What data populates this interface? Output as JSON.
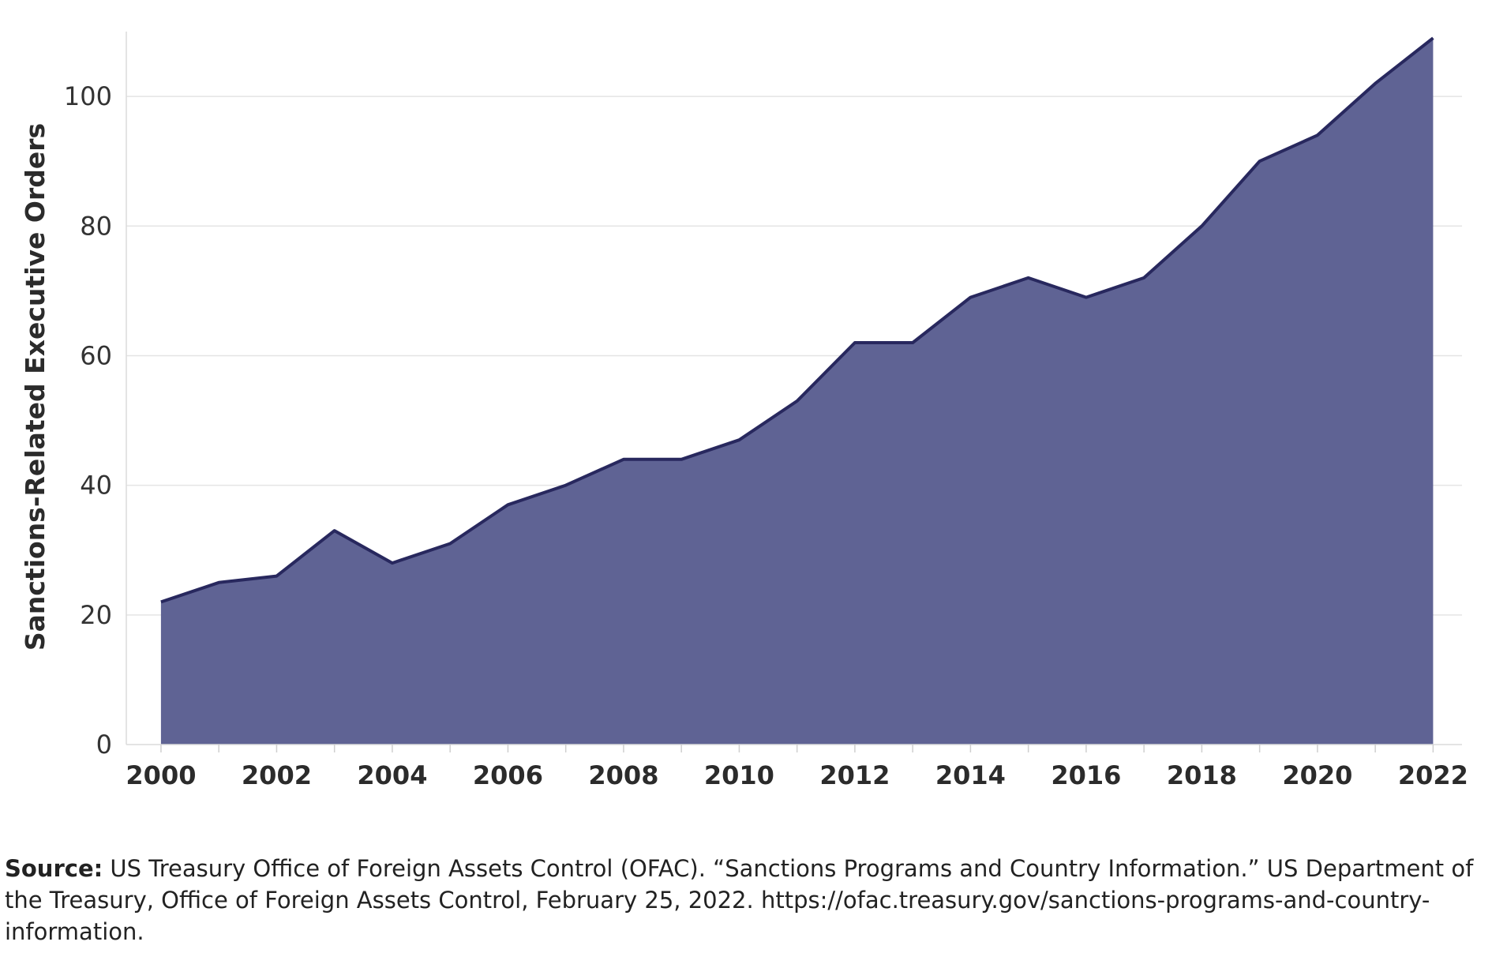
{
  "chart_data": {
    "type": "area",
    "title": "",
    "xlabel": "",
    "ylabel": "Sanctions-Related Executive Orders",
    "x": [
      2000,
      2001,
      2002,
      2003,
      2004,
      2005,
      2006,
      2007,
      2008,
      2009,
      2010,
      2011,
      2012,
      2013,
      2014,
      2015,
      2016,
      2017,
      2018,
      2019,
      2020,
      2021,
      2022
    ],
    "values": [
      22,
      25,
      26,
      33,
      28,
      31,
      37,
      40,
      44,
      44,
      47,
      53,
      62,
      62,
      69,
      72,
      69,
      72,
      80,
      90,
      94,
      102,
      109
    ],
    "xlim": [
      1999.4,
      2022.5
    ],
    "ylim": [
      0,
      110
    ],
    "x_ticks": [
      "2000",
      "2002",
      "2004",
      "2006",
      "2008",
      "2010",
      "2012",
      "2014",
      "2016",
      "2018",
      "2020",
      "2022"
    ],
    "y_ticks": [
      "0",
      "20",
      "40",
      "60",
      "80",
      "100"
    ],
    "grid": true,
    "fill_color": "#5f6394",
    "line_color": "#28285e"
  },
  "source": {
    "label": "Source:",
    "text": " US Treasury Office of Foreign Assets Control (OFAC). “Sanctions Programs and Country Information.” US Department of the Treasury, Office of Foreign Assets Control, February 25, 2022. https://ofac.treasury.gov/sanctions-programs-and-country-information."
  }
}
